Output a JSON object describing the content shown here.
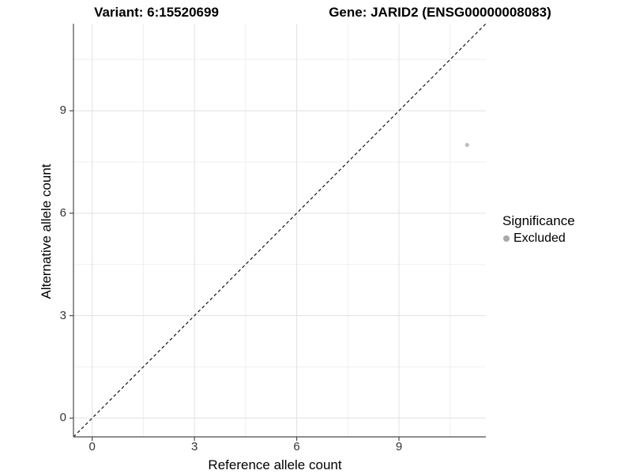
{
  "figure": {
    "titles": {
      "variant": "Variant: 6:15520699",
      "gene": "Gene: JARID2 (ENSG00000008083)"
    },
    "x_axis": {
      "label": "Reference allele count"
    },
    "y_axis": {
      "label": "Alternative allele count"
    },
    "legend": {
      "title": "Significance",
      "items": [
        {
          "label": "Excluded",
          "color": "#a9a9a9"
        }
      ]
    }
  },
  "colors": {
    "background": "#ffffff",
    "grid_major": "#e4e4e4",
    "grid_minor": "#efefef",
    "axis_line": "#4a4a4a",
    "tick_text": "#333333",
    "reference_line": "#000000",
    "point": "#bdbdbd"
  },
  "chart_data": {
    "type": "scatter",
    "title": "Variant: 6:15520699 | Gene: JARID2 (ENSG00000008083)",
    "xlabel": "Reference allele count",
    "ylabel": "Alternative allele count",
    "xlim": [
      -0.55,
      11.55
    ],
    "ylim": [
      -0.55,
      11.55
    ],
    "x_ticks": [
      0,
      3,
      6,
      9
    ],
    "y_ticks": [
      0,
      3,
      6,
      9
    ],
    "x_minor_ticks": [
      1.5,
      4.5,
      7.5,
      10.5
    ],
    "y_minor_ticks": [
      1.5,
      4.5,
      7.5,
      10.5
    ],
    "grid": "major+minor",
    "legend_position": "right",
    "legend_title": "Significance",
    "series": [
      {
        "name": "Excluded",
        "color": "#bdbdbd",
        "points": [
          {
            "x": 11,
            "y": 8
          }
        ]
      }
    ],
    "reference_line": {
      "type": "identity y=x",
      "style": "dashed",
      "from": [
        -0.55,
        -0.55
      ],
      "to": [
        11.55,
        11.55
      ]
    }
  }
}
